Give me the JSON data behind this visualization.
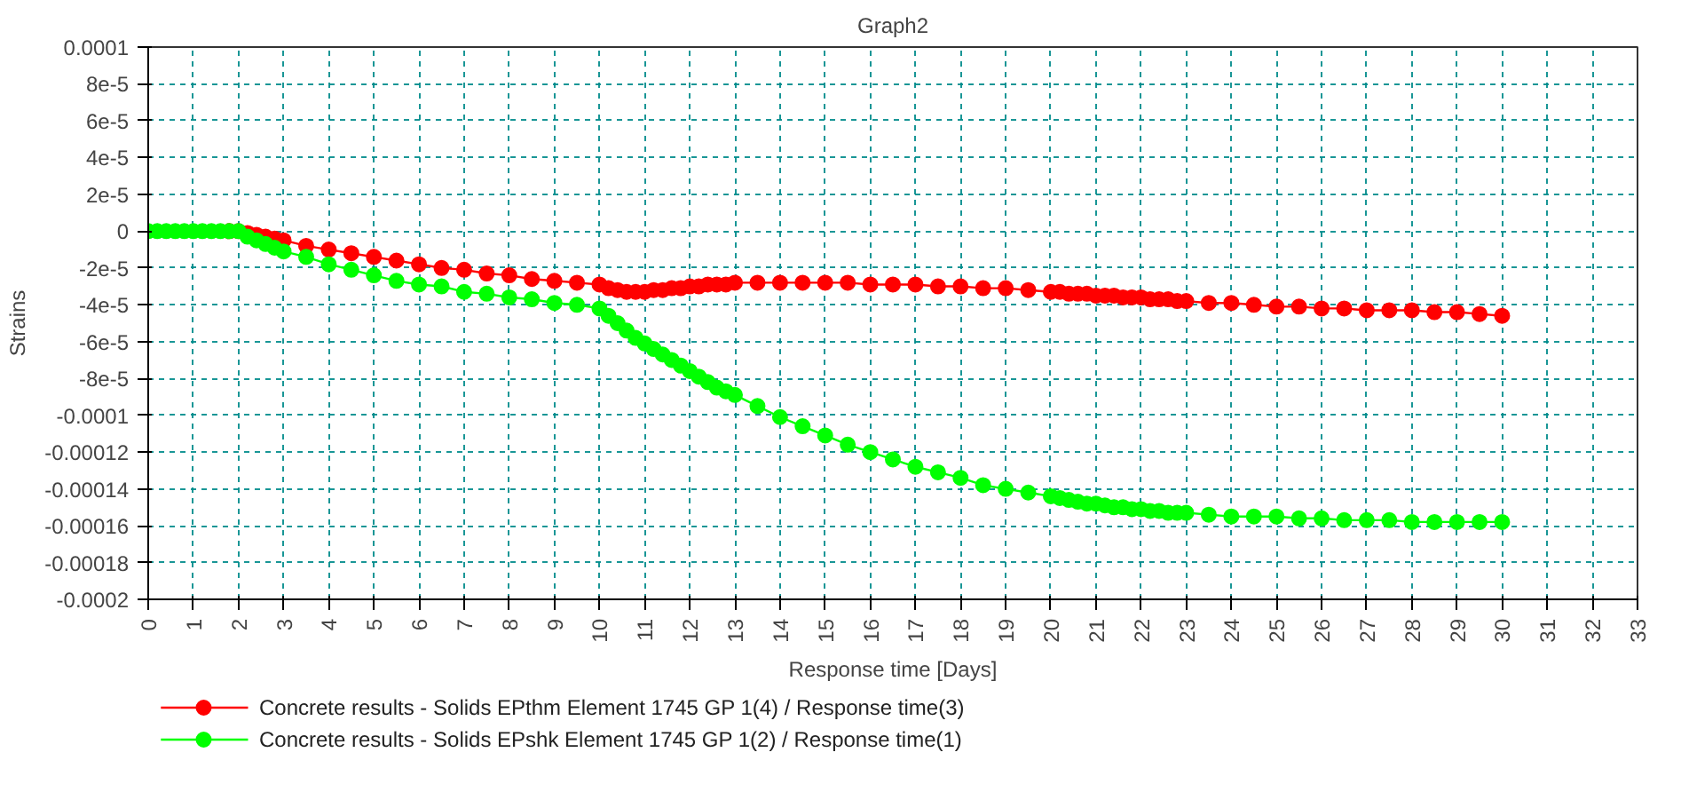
{
  "chart_data": {
    "type": "line",
    "title": "Graph2",
    "xlabel": "Response time [Days]",
    "ylabel": "Strains",
    "x": [
      0,
      0.2,
      0.4,
      0.6,
      0.8,
      1,
      1.2,
      1.4,
      1.6,
      1.8,
      2,
      2.2,
      2.4,
      2.6,
      2.8,
      3,
      3.5,
      4,
      4.5,
      5,
      5.5,
      6,
      6.5,
      7,
      7.5,
      8,
      8.5,
      9,
      9.5,
      10,
      10.2,
      10.4,
      10.6,
      10.8,
      11,
      11.2,
      11.4,
      11.6,
      11.8,
      12,
      12.2,
      12.4,
      12.6,
      12.8,
      13,
      13.5,
      14,
      14.5,
      15,
      15.5,
      16,
      16.5,
      17,
      17.5,
      18,
      18.5,
      19,
      19.5,
      20,
      20.2,
      20.4,
      20.6,
      20.8,
      21,
      21.2,
      21.4,
      21.6,
      21.8,
      22,
      22.2,
      22.4,
      22.6,
      22.8,
      23,
      23.5,
      24,
      24.5,
      25,
      25.5,
      26,
      26.5,
      27,
      27.5,
      28,
      28.5,
      29,
      29.5,
      30
    ],
    "series": [
      {
        "name": "Concrete results - Solids EPthm Element 1745 GP 1(4) / Response time(3)",
        "color": "#ff0000",
        "values": [
          null,
          null,
          null,
          null,
          null,
          null,
          null,
          null,
          null,
          0,
          0,
          -1e-06,
          -2e-06,
          -3e-06,
          -4e-06,
          -5e-06,
          -8e-06,
          -1e-05,
          -1.2e-05,
          -1.4e-05,
          -1.6e-05,
          -1.8e-05,
          -2e-05,
          -2.1e-05,
          -2.3e-05,
          -2.4e-05,
          -2.6e-05,
          -2.7e-05,
          -2.8e-05,
          -2.9e-05,
          -3.1e-05,
          -3.2e-05,
          -3.3e-05,
          -3.3e-05,
          -3.3e-05,
          -3.2e-05,
          -3.2e-05,
          -3.1e-05,
          -3.1e-05,
          -3e-05,
          -3e-05,
          -2.9e-05,
          -2.9e-05,
          -2.9e-05,
          -2.8e-05,
          -2.8e-05,
          -2.8e-05,
          -2.8e-05,
          -2.8e-05,
          -2.8e-05,
          -2.9e-05,
          -2.9e-05,
          -2.9e-05,
          -3e-05,
          -3e-05,
          -3.1e-05,
          -3.1e-05,
          -3.2e-05,
          -3.3e-05,
          -3.3e-05,
          -3.4e-05,
          -3.4e-05,
          -3.4e-05,
          -3.5e-05,
          -3.5e-05,
          -3.5e-05,
          -3.6e-05,
          -3.6e-05,
          -3.6e-05,
          -3.7e-05,
          -3.7e-05,
          -3.7e-05,
          -3.8e-05,
          -3.8e-05,
          -3.9e-05,
          -3.9e-05,
          -4e-05,
          -4.1e-05,
          -4.1e-05,
          -4.2e-05,
          -4.2e-05,
          -4.3e-05,
          -4.3e-05,
          -4.3e-05,
          -4.4e-05,
          -4.4e-05,
          -4.5e-05,
          -4.6e-05
        ]
      },
      {
        "name": "Concrete results - Solids EPshk Element 1745 GP 1(2) / Response time(1)",
        "color": "#00ff00",
        "values": [
          0,
          0,
          0,
          0,
          0,
          0,
          0,
          0,
          0,
          0,
          0,
          -3e-06,
          -5e-06,
          -7e-06,
          -9e-06,
          -1.1e-05,
          -1.4e-05,
          -1.8e-05,
          -2.1e-05,
          -2.4e-05,
          -2.7e-05,
          -2.9e-05,
          -3e-05,
          -3.3e-05,
          -3.4e-05,
          -3.6e-05,
          -3.7e-05,
          -3.9e-05,
          -4e-05,
          -4.2e-05,
          -4.6e-05,
          -5e-05,
          -5.4e-05,
          -5.8e-05,
          -6.1e-05,
          -6.4e-05,
          -6.7e-05,
          -7e-05,
          -7.3e-05,
          -7.6e-05,
          -7.9e-05,
          -8.2e-05,
          -8.5e-05,
          -8.7e-05,
          -8.9e-05,
          -9.5e-05,
          -0.000101,
          -0.000106,
          -0.000111,
          -0.000116,
          -0.00012,
          -0.000124,
          -0.000128,
          -0.000131,
          -0.000134,
          -0.000138,
          -0.00014,
          -0.000142,
          -0.000144,
          -0.000145,
          -0.000146,
          -0.000147,
          -0.000148,
          -0.000148,
          -0.000149,
          -0.00015,
          -0.00015,
          -0.000151,
          -0.000151,
          -0.000152,
          -0.000152,
          -0.000153,
          -0.000153,
          -0.000153,
          -0.000154,
          -0.000155,
          -0.000155,
          -0.000155,
          -0.000156,
          -0.000156,
          -0.000157,
          -0.000157,
          -0.000157,
          -0.000158,
          -0.000158,
          -0.000158,
          -0.000158,
          -0.000158
        ]
      }
    ],
    "xlim": [
      0,
      33
    ],
    "xticks": [
      0,
      1,
      2,
      3,
      4,
      5,
      6,
      7,
      8,
      9,
      10,
      11,
      12,
      13,
      14,
      15,
      16,
      17,
      18,
      19,
      20,
      21,
      22,
      23,
      24,
      25,
      26,
      27,
      28,
      29,
      30,
      31,
      32,
      33
    ],
    "ylim": [
      -0.0002,
      0.0001
    ],
    "yticks": [
      {
        "value": 0.0001,
        "label": "0.0001"
      },
      {
        "value": 8e-05,
        "label": "8e-5"
      },
      {
        "value": 6e-05,
        "label": "6e-5"
      },
      {
        "value": 4e-05,
        "label": "4e-5"
      },
      {
        "value": 2e-05,
        "label": "2e-5"
      },
      {
        "value": 0,
        "label": "0"
      },
      {
        "value": -2e-05,
        "label": "-2e-5"
      },
      {
        "value": -4e-05,
        "label": "-4e-5"
      },
      {
        "value": -6e-05,
        "label": "-6e-5"
      },
      {
        "value": -8e-05,
        "label": "-8e-5"
      },
      {
        "value": -0.0001,
        "label": "-0.0001"
      },
      {
        "value": -0.00012,
        "label": "-0.00012"
      },
      {
        "value": -0.00014,
        "label": "-0.00014"
      },
      {
        "value": -0.00016,
        "label": "-0.00016"
      },
      {
        "value": -0.00018,
        "label": "-0.00018"
      },
      {
        "value": -0.0002,
        "label": "-0.0002"
      }
    ],
    "grid": true,
    "legend": "bottom left",
    "marker": "circle",
    "line_style": "solid"
  }
}
